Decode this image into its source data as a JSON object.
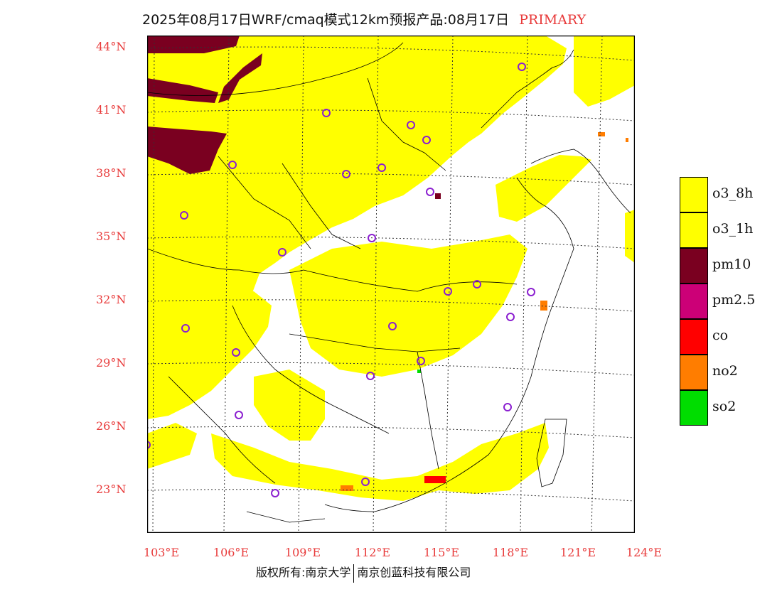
{
  "header": {
    "title": "2025年08月17日WRF/cmaq模式12km预报产品:08月17日",
    "tag": "PRIMARY"
  },
  "map": {
    "lat_labels": [
      "44°N",
      "41°N",
      "38°N",
      "35°N",
      "32°N",
      "29°N",
      "26°N",
      "23°N"
    ],
    "lon_labels": [
      "103°E",
      "106°E",
      "109°E",
      "112°E",
      "115°E",
      "118°E",
      "121°E",
      "124°E"
    ],
    "colors": {
      "background": "#ffffff",
      "o3": "#ffff00",
      "pm10": "#7a0020",
      "no2": "#ff7d00",
      "co": "#ff0000",
      "so2": "#00dd00",
      "station_marker": "#8b1fd0"
    }
  },
  "legend": {
    "items": [
      {
        "label": "o3_8h",
        "color": "#ffff00"
      },
      {
        "label": "o3_1h",
        "color": "#ffff00"
      },
      {
        "label": "pm10",
        "color": "#7a0020"
      },
      {
        "label": "pm2.5",
        "color": "#cc0077"
      },
      {
        "label": "co",
        "color": "#ff0000"
      },
      {
        "label": "no2",
        "color": "#ff7d00"
      },
      {
        "label": "so2",
        "color": "#00dd00"
      }
    ]
  },
  "footer": {
    "copyright_left": "版权所有:南京大学",
    "copyright_right": "南京创蓝科技有限公司"
  }
}
